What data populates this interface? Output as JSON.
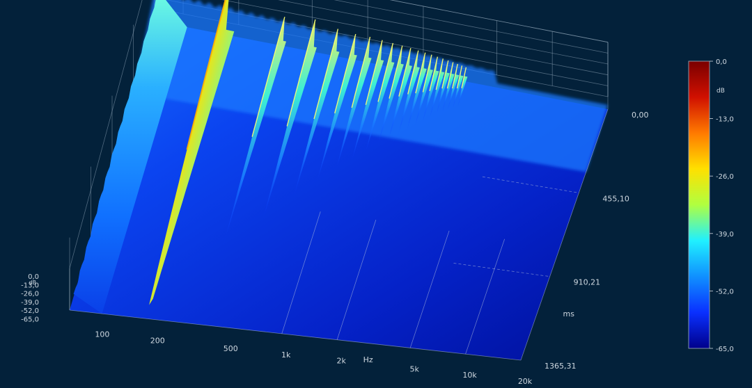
{
  "chart_data": {
    "type": "waterfall-3d",
    "x_axis": {
      "label": "Hz",
      "scale": "log",
      "range": [
        70,
        20000
      ],
      "ticks": [
        {
          "value": 100,
          "label": "100"
        },
        {
          "value": 200,
          "label": "200"
        },
        {
          "value": 500,
          "label": "500"
        },
        {
          "value": 1000,
          "label": "1k"
        },
        {
          "value": 2000,
          "label": "2k"
        },
        {
          "value": 5000,
          "label": "5k"
        },
        {
          "value": 10000,
          "label": "10k"
        },
        {
          "value": 20000,
          "label": "20k"
        }
      ]
    },
    "time_axis": {
      "label": "ms",
      "range": [
        0,
        1365.31
      ],
      "ticks": [
        {
          "value": 0,
          "label": "0,00"
        },
        {
          "value": 455.1,
          "label": "455,10"
        },
        {
          "value": 910.21,
          "label": "910,21"
        },
        {
          "value": 1365.31,
          "label": "1365,31"
        }
      ]
    },
    "z_axis": {
      "unit": "dB",
      "range": [
        -65,
        0
      ],
      "ticks": [
        "0,0",
        "-13,0",
        "-26,0",
        "-39,0",
        "-52,0",
        "-65,0"
      ]
    },
    "colorbar": {
      "unit": "dB",
      "ticks": [
        "0,0",
        "-13,0",
        "-26,0",
        "-39,0",
        "-52,0",
        "-65,0"
      ],
      "colors": [
        "#7a0000",
        "#d01000",
        "#ff7a00",
        "#ffe000",
        "#b0ff40",
        "#20f0ff",
        "#1090ff",
        "#0a30ff",
        "#00008a"
      ]
    },
    "resonances": [
      {
        "freq": 180,
        "level_db": 0,
        "decay_ms": 1000
      },
      {
        "freq": 355,
        "level_db": -30,
        "decay_ms": 750
      },
      {
        "freq": 520,
        "level_db": -26,
        "decay_ms": 650
      },
      {
        "freq": 690,
        "level_db": -32,
        "decay_ms": 550
      },
      {
        "freq": 860,
        "level_db": -34,
        "decay_ms": 480
      },
      {
        "freq": 1030,
        "level_db": -34,
        "decay_ms": 420
      },
      {
        "freq": 1200,
        "level_db": -35,
        "decay_ms": 380
      },
      {
        "freq": 1370,
        "level_db": -36,
        "decay_ms": 340
      },
      {
        "freq": 1540,
        "level_db": -37,
        "decay_ms": 300
      },
      {
        "freq": 1710,
        "level_db": -38,
        "decay_ms": 270
      },
      {
        "freq": 1880,
        "level_db": -39,
        "decay_ms": 240
      },
      {
        "freq": 2050,
        "level_db": -40,
        "decay_ms": 220
      },
      {
        "freq": 2220,
        "level_db": -41,
        "decay_ms": 200
      },
      {
        "freq": 2390,
        "level_db": -42,
        "decay_ms": 180
      },
      {
        "freq": 2560,
        "level_db": -43,
        "decay_ms": 160
      },
      {
        "freq": 2730,
        "level_db": -44,
        "decay_ms": 140
      },
      {
        "freq": 2900,
        "level_db": -45,
        "decay_ms": 130
      },
      {
        "freq": 3070,
        "level_db": -46,
        "decay_ms": 120
      },
      {
        "freq": 3240,
        "level_db": -47,
        "decay_ms": 110
      },
      {
        "freq": 3410,
        "level_db": -48,
        "decay_ms": 100
      }
    ],
    "grid": true
  }
}
